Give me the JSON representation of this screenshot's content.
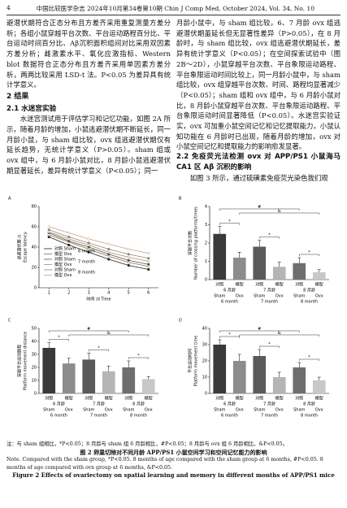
{
  "header": {
    "page": "4",
    "journal": "中国比较医学杂志 2024年10月第34卷第10期  Chin J Comp Med, October 2024, Vol. 34, No. 10"
  },
  "left": {
    "p1": "避潜伏期符合正态分布且方差齐采用重复测量方差分析；各组小鼠穿越平台次数、平台运动路程百分比、平台运动时间百分比、Aβ沉积面积组间对比采用双因素方差分析；雌激素水平、氧化应激指标、Western blot 数据符合正态分布且方差齐采用单因素方差分析，两两比较采用 LSD-t 法。P<0.05 为差异具有统计学意义。",
    "h1": "2 结果",
    "h2": "2.1 水迷宫实验",
    "p2": "水迷宫测试用于评估学习和记忆功能，如图 2A 所示，随着月龄的增加，小鼠逃避潜伏期不断延长，同一月龄小鼠，与 sham 组比较，ovx 组逃避潜伏期仅有延长趋势，无统计学意义（P>0.05）。sham 组或 ovx 组中，与 6 月龄小鼠对比，8 月龄小鼠逃避潜伏期显著延长，差异有统计学意义（P<0.05）；同一"
  },
  "right": {
    "p1": "月龄小鼠中，与 sham 组比较，6、7 月龄 ovx 组逃避潜伏期虽延长但无显著性差异（P>0.05），在 8 月龄时，与 sham 组比较，ovx 组逃避潜伏期延长，差异有统计学意义（P<0.05）；在空间探索试验中（图 2B～2D），小鼠穿越平台次数、平台象限运动路程、平台象限运动时间比较上，同一月龄小鼠中，与 sham 组比较，ovx 组穿越平台次数、时间、路程均显著减少（P<0.05）；sham 组和 ovx 组中，与 6 月龄小鼠对比，8 月龄小鼠穿越平台次数、平台象限运动路程、平台象限运动时间显著降低（P<0.05）。水迷宫实验证实，ovx 可加重小鼠空间记忆和记忆提取能力，小鼠认知功能在 6 月龄时已出现，随着月龄的增加，ovx 对小鼠空间记忆和提取能力的影响愈发显著。",
    "h2": "2.2 免疫荧光法检测 ovx 对 APP/PS1 小鼠海马 CA1 区 Aβ 沉积的影响",
    "p2": "如图 3 所示，通过硫磺素免疫荧光染色我们观"
  },
  "figure": {
    "panels": [
      {
        "label": "A",
        "type": "line",
        "y_label": "逃避潜伏期 /s",
        "y_label_en": "Escape latency",
        "x_label": "时间 /d Time",
        "x": [
          1,
          2,
          3,
          4,
          5,
          6
        ],
        "xlim": [
          0.5,
          6.5
        ],
        "xticks": [
          1,
          2,
          3,
          4,
          5,
          6
        ],
        "ylim": [
          0,
          80
        ],
        "yticks": [
          0,
          20,
          40,
          60,
          80
        ],
        "legend_groups": [
          "6 month",
          "7 month",
          "8 month"
        ],
        "series": [
          {
            "name": "对照 Sham",
            "color": "#222222",
            "values": [
              50,
              42,
              35,
              28,
              22,
              18
            ]
          },
          {
            "name": "模型 Ovx",
            "color": "#8a6d4a",
            "values": [
              52,
              45,
              38,
              31,
              25,
              21
            ]
          },
          {
            "name": "对照 Sham",
            "color": "#555555",
            "values": [
              54,
              46,
              40,
              33,
              27,
              23
            ]
          },
          {
            "name": "模型 Ovx",
            "color": "#b08a5a",
            "values": [
              55,
              48,
              42,
              35,
              30,
              26
            ]
          },
          {
            "name": "对照 Sham",
            "color": "#888888",
            "values": [
              57,
              50,
              44,
              38,
              33,
              29
            ]
          },
          {
            "name": "模型 Ovx",
            "color": "#c9a27a",
            "values": [
              60,
              54,
              48,
              43,
              38,
              34
            ]
          }
        ]
      },
      {
        "label": "B",
        "type": "bar",
        "y_label": "穿越平台次数",
        "y_label_en": "Number of crossing platforms/times",
        "categories": [
          "对照",
          "模型",
          "对照",
          "模型",
          "对照",
          "模型"
        ],
        "sublabels": [
          "Sham",
          "Ovx",
          "Sham",
          "Ovx",
          "Sham",
          "Ovx"
        ],
        "groups": [
          "6 月龄",
          "7 月龄",
          "8 月龄"
        ],
        "groups_en": [
          "6 month",
          "7 month",
          "8 month"
        ],
        "values": [
          2.5,
          1.2,
          1.8,
          0.7,
          0.9,
          0.4
        ],
        "errors": [
          0.4,
          0.3,
          0.35,
          0.25,
          0.3,
          0.15
        ],
        "colors": [
          "#3a3a3a",
          "#8c8c8c",
          "#5a5a5a",
          "#b5b5b5",
          "#6e6e6e",
          "#c8c8c8"
        ],
        "ylim": [
          0,
          4
        ],
        "yticks": [
          0,
          1,
          2,
          3,
          4
        ],
        "annotations": [
          "*",
          "*",
          "*",
          "#",
          "&"
        ]
      },
      {
        "label": "C",
        "type": "bar",
        "y_label": "穿越平台运动路程",
        "y_label_en": "Platform movement distance",
        "categories": [
          "对照",
          "模型",
          "对照",
          "模型",
          "对照",
          "模型"
        ],
        "sublabels": [
          "Sham",
          "Ovx",
          "Sham",
          "Ovx",
          "Sham",
          "Ovx"
        ],
        "groups": [
          "6 月龄",
          "7 月龄",
          "8 月龄"
        ],
        "groups_en": [
          "6 month",
          "7 month",
          "8 month"
        ],
        "values": [
          35,
          23,
          26,
          17,
          20,
          11
        ],
        "errors": [
          4,
          4,
          5,
          4,
          5,
          2
        ],
        "colors": [
          "#3a3a3a",
          "#8c8c8c",
          "#5a5a5a",
          "#b5b5b5",
          "#6e6e6e",
          "#c8c8c8"
        ],
        "ylim": [
          0,
          50
        ],
        "yticks": [
          0,
          10,
          20,
          30,
          40,
          50
        ],
        "annotations": [
          "*",
          "*",
          "*",
          "#",
          "&"
        ]
      },
      {
        "label": "D",
        "type": "bar",
        "y_label": "平台运动时间",
        "y_label_en": "Platform movement time",
        "categories": [
          "对照",
          "模型",
          "对照",
          "模型",
          "对照",
          "模型"
        ],
        "sublabels": [
          "Sham",
          "Ovx",
          "Sham",
          "Ovx",
          "Sham",
          "Ovx"
        ],
        "groups": [
          "6 月龄",
          "7 月龄",
          "8 月龄"
        ],
        "groups_en": [
          "6 month",
          "7 month",
          "8 month"
        ],
        "values": [
          30,
          20,
          23,
          10,
          16,
          8
        ],
        "errors": [
          3,
          4,
          4,
          3,
          3,
          2
        ],
        "colors": [
          "#3a3a3a",
          "#8c8c8c",
          "#5a5a5a",
          "#b5b5b5",
          "#6e6e6e",
          "#c8c8c8"
        ],
        "ylim": [
          0,
          40
        ],
        "yticks": [
          0,
          10,
          20,
          30,
          40
        ],
        "annotations": [
          "*",
          "*",
          "*",
          "#",
          "&"
        ]
      }
    ]
  },
  "caption": {
    "note_cn": "注：与 sham 组相比，*P<0.05；8 月龄与 sham 组 6 月龄相比，#P<0.05；8 月龄与 ovx 组 6 月龄相比，&P<0.05。",
    "title_cn": "图 2  卵巢切除对不同月龄 APP/PS1 小鼠空间学习和空间记忆能力的影响",
    "note_en": "Note. Compared with the sham group, *P<0.05. 8 months of age compared with the sham group at 6 months, #P<0.05. 8 months of age compared with ovx group at 6 months, &P<0.05.",
    "title_en": "Figure 2  Effects of ovariectomy on spatial learning and memory in different months of APP/PS1 mice"
  }
}
